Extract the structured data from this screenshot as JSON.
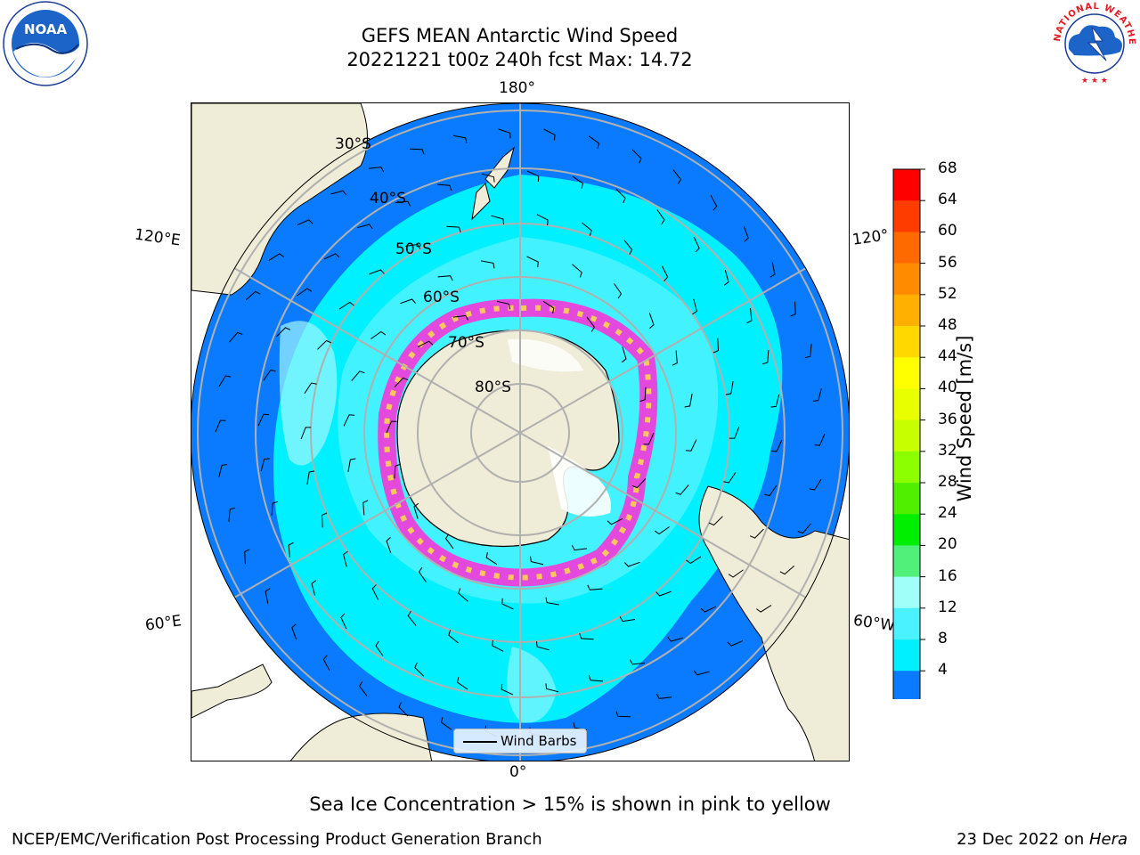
{
  "title": {
    "line1": "GEFS MEAN Antarctic Wind Speed",
    "line2": "20221221 t00z 240h fcst   Max: 14.72"
  },
  "map": {
    "projection": "south-polar-stereographic",
    "longitude_labels": {
      "top": "180°",
      "bottom": "0°",
      "left_upper": "120°E",
      "left_lower": "60°E",
      "right_upper": "120°",
      "right_lower": "60°W"
    },
    "latitude_labels": [
      "30°S",
      "40°S",
      "50°S",
      "60°S",
      "70°S",
      "80°S"
    ],
    "colors": {
      "land": "#efedd8",
      "ocean_4_8": "#0a7bff",
      "ocean_8_12": "#00f0ff",
      "ocean_12_16": "#4af2ff",
      "ocean_16_20": "#a0f7ff",
      "sea_ice_low": "#ff2bd6",
      "sea_ice_high": "#ffd54f",
      "ice_white": "#ffffff"
    }
  },
  "legend": {
    "label": "Wind Barbs"
  },
  "colorbar": {
    "title": "Wind Speed [m/s]",
    "ticks": [
      "68",
      "64",
      "60",
      "56",
      "52",
      "48",
      "44",
      "40",
      "36",
      "32",
      "28",
      "24",
      "20",
      "16",
      "12",
      "8",
      "4"
    ],
    "colors": [
      "#ff0000",
      "#ff3c00",
      "#ff6a00",
      "#ff8c00",
      "#ffb000",
      "#ffd800",
      "#ffff00",
      "#e8ff00",
      "#c8ff00",
      "#8cff00",
      "#50ef00",
      "#00ef00",
      "#50f07a",
      "#a0fff8",
      "#4af2ff",
      "#00f0ff",
      "#0a7bff"
    ],
    "extend_color": "#0000ff"
  },
  "subnote": "Sea Ice Concentration > 15% is shown in pink to yellow",
  "footer": {
    "left": "NCEP/EMC/Verification Post Processing Product Generation Branch",
    "right_date": "23 Dec 2022 on ",
    "right_machine": "Hera"
  },
  "logos": {
    "noaa_text": "NOAA",
    "nws_text": "NATIONAL WEATHER SERVICE"
  }
}
